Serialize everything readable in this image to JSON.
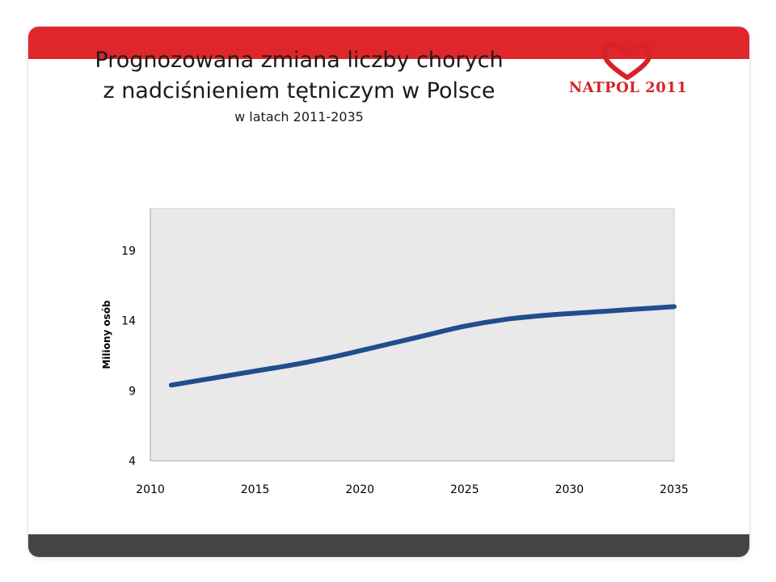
{
  "header": {
    "title_line1": "Prognozowana zmiana liczby chorych",
    "title_line2": "z nadciśnieniem  tętniczym w Polsce",
    "subtitle": "w latach 2011-2035"
  },
  "logo": {
    "text": "NATPOL 2011",
    "icon": "heart-icon",
    "color": "#d6232a"
  },
  "colors": {
    "top_bar": "#e0262b",
    "bottom_bar": "#444444",
    "line": "#1f4e8c",
    "plot_bg": "#e9e9e9"
  },
  "chart_data": {
    "type": "line",
    "ylabel": "Miliony osób",
    "xlim": [
      2010,
      2035
    ],
    "ylim": [
      4,
      22
    ],
    "x_ticks": [
      2010,
      2015,
      2020,
      2025,
      2030,
      2035
    ],
    "y_ticks": [
      4,
      9,
      14,
      19
    ],
    "grid": false,
    "series": [
      {
        "x": [
          2011,
          2013,
          2015,
          2017,
          2019,
          2021,
          2023,
          2025,
          2027,
          2029,
          2031,
          2033,
          2035
        ],
        "y": [
          9.4,
          9.9,
          10.4,
          10.9,
          11.5,
          12.2,
          12.9,
          13.6,
          14.1,
          14.4,
          14.6,
          14.8,
          15.0
        ]
      }
    ]
  }
}
